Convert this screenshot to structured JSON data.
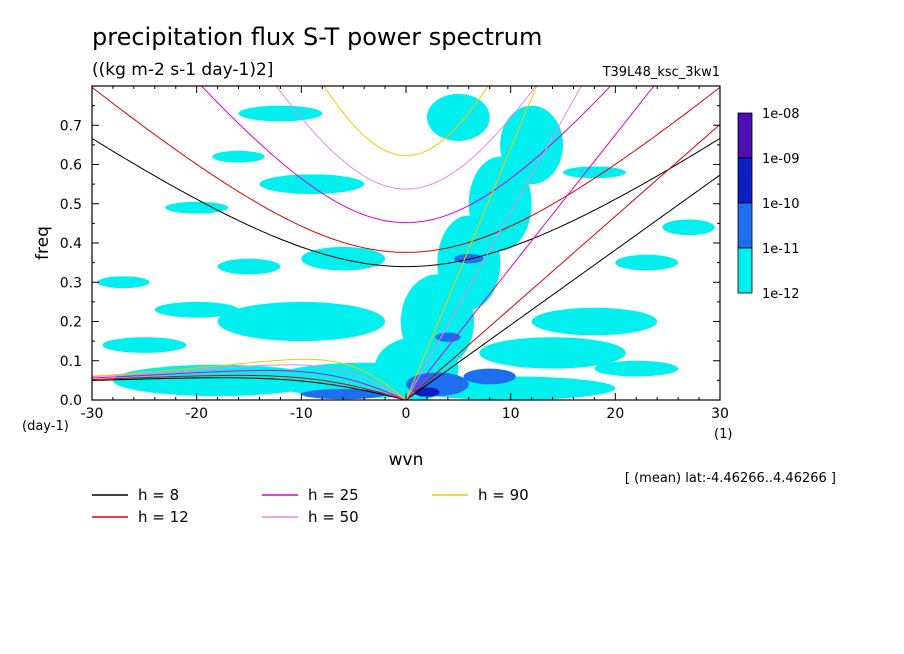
{
  "chart_data": {
    "type": "heatmap",
    "title": "precipitation flux S-T power spectrum",
    "subtitle": "((kg m-2 s-1 day-1)2]",
    "run_label": "T39L48_ksc_3kw1",
    "xlabel": "wvn",
    "ylabel": "freq",
    "x_unit": "(1)",
    "y_unit": "(day-1)",
    "xlim": [
      -30,
      30
    ],
    "ylim": [
      0,
      0.8
    ],
    "xticks": [
      -30,
      -20,
      -10,
      0,
      10,
      20,
      30
    ],
    "yticks": [
      0.0,
      0.1,
      0.2,
      0.3,
      0.4,
      0.5,
      0.6,
      0.7
    ],
    "xtick_labels": [
      "-30",
      "-20",
      "-10",
      "0",
      "10",
      "20",
      "30"
    ],
    "ytick_labels": [
      "0.0",
      "0.1",
      "0.2",
      "0.3",
      "0.4",
      "0.5",
      "0.6",
      "0.7"
    ],
    "note": "[ (mean) lat:-4.46266..4.46266 ]",
    "colorbar": {
      "labels": [
        "1e-08",
        "1e-09",
        "1e-10",
        "1e-11",
        "1e-12"
      ],
      "colors": [
        "#4b0eb5",
        "#0d1ec4",
        "#1e6ff0",
        "#00f0f0"
      ]
    },
    "fill_colors": {
      "lvl1": "#00f0f0",
      "lvl2": "#1e6ff0",
      "lvl3": "#0d1ec4"
    },
    "dispersion_curves": [
      {
        "name": "h =  8",
        "h": 8,
        "color": "#000000"
      },
      {
        "name": "h = 12",
        "h": 12,
        "color": "#e00000"
      },
      {
        "name": "h = 25",
        "h": 25,
        "color": "#e000c8"
      },
      {
        "name": "h = 50",
        "h": 50,
        "color": "#e08ce0"
      },
      {
        "name": "h = 90",
        "h": 90,
        "color": "#f0c800"
      }
    ],
    "cyan_regions": [
      {
        "x": 1,
        "y": 0.08,
        "rx": 4,
        "ry": 0.08
      },
      {
        "x": 3,
        "y": 0.2,
        "rx": 3.5,
        "ry": 0.12
      },
      {
        "x": 6,
        "y": 0.35,
        "rx": 3,
        "ry": 0.12
      },
      {
        "x": 9,
        "y": 0.5,
        "rx": 3,
        "ry": 0.12
      },
      {
        "x": 12,
        "y": 0.65,
        "rx": 3,
        "ry": 0.1
      },
      {
        "x": 5,
        "y": 0.72,
        "rx": 3,
        "ry": 0.06
      },
      {
        "x": -4,
        "y": 0.05,
        "rx": 9,
        "ry": 0.045
      },
      {
        "x": -18,
        "y": 0.05,
        "rx": 10,
        "ry": 0.04
      },
      {
        "x": -10,
        "y": 0.2,
        "rx": 8,
        "ry": 0.05
      },
      {
        "x": -20,
        "y": 0.23,
        "rx": 4,
        "ry": 0.02
      },
      {
        "x": -25,
        "y": 0.14,
        "rx": 4,
        "ry": 0.02
      },
      {
        "x": 14,
        "y": 0.12,
        "rx": 7,
        "ry": 0.04
      },
      {
        "x": 22,
        "y": 0.08,
        "rx": 4,
        "ry": 0.02
      },
      {
        "x": 18,
        "y": 0.2,
        "rx": 6,
        "ry": 0.035
      },
      {
        "x": -6,
        "y": 0.36,
        "rx": 4,
        "ry": 0.03
      },
      {
        "x": -15,
        "y": 0.34,
        "rx": 3,
        "ry": 0.02
      },
      {
        "x": -9,
        "y": 0.55,
        "rx": 5,
        "ry": 0.025
      },
      {
        "x": -12,
        "y": 0.73,
        "rx": 4,
        "ry": 0.02
      },
      {
        "x": -20,
        "y": 0.49,
        "rx": 3,
        "ry": 0.015
      },
      {
        "x": 23,
        "y": 0.35,
        "rx": 3,
        "ry": 0.02
      },
      {
        "x": -27,
        "y": 0.3,
        "rx": 2.5,
        "ry": 0.015
      },
      {
        "x": 27,
        "y": 0.44,
        "rx": 2.5,
        "ry": 0.02
      },
      {
        "x": 10,
        "y": 0.03,
        "rx": 10,
        "ry": 0.03
      },
      {
        "x": -16,
        "y": 0.62,
        "rx": 2.5,
        "ry": 0.015
      },
      {
        "x": 18,
        "y": 0.58,
        "rx": 3,
        "ry": 0.015
      }
    ],
    "blue_regions": [
      {
        "x": 3,
        "y": 0.04,
        "rx": 3,
        "ry": 0.03
      },
      {
        "x": -6,
        "y": 0.015,
        "rx": 4,
        "ry": 0.013
      },
      {
        "x": 8,
        "y": 0.06,
        "rx": 2.5,
        "ry": 0.02
      },
      {
        "x": 6,
        "y": 0.36,
        "rx": 1.4,
        "ry": 0.012
      },
      {
        "x": 4,
        "y": 0.16,
        "rx": 1.2,
        "ry": 0.012
      }
    ],
    "darkblue_regions": [
      {
        "x": 2,
        "y": 0.02,
        "rx": 1.2,
        "ry": 0.012
      }
    ]
  }
}
